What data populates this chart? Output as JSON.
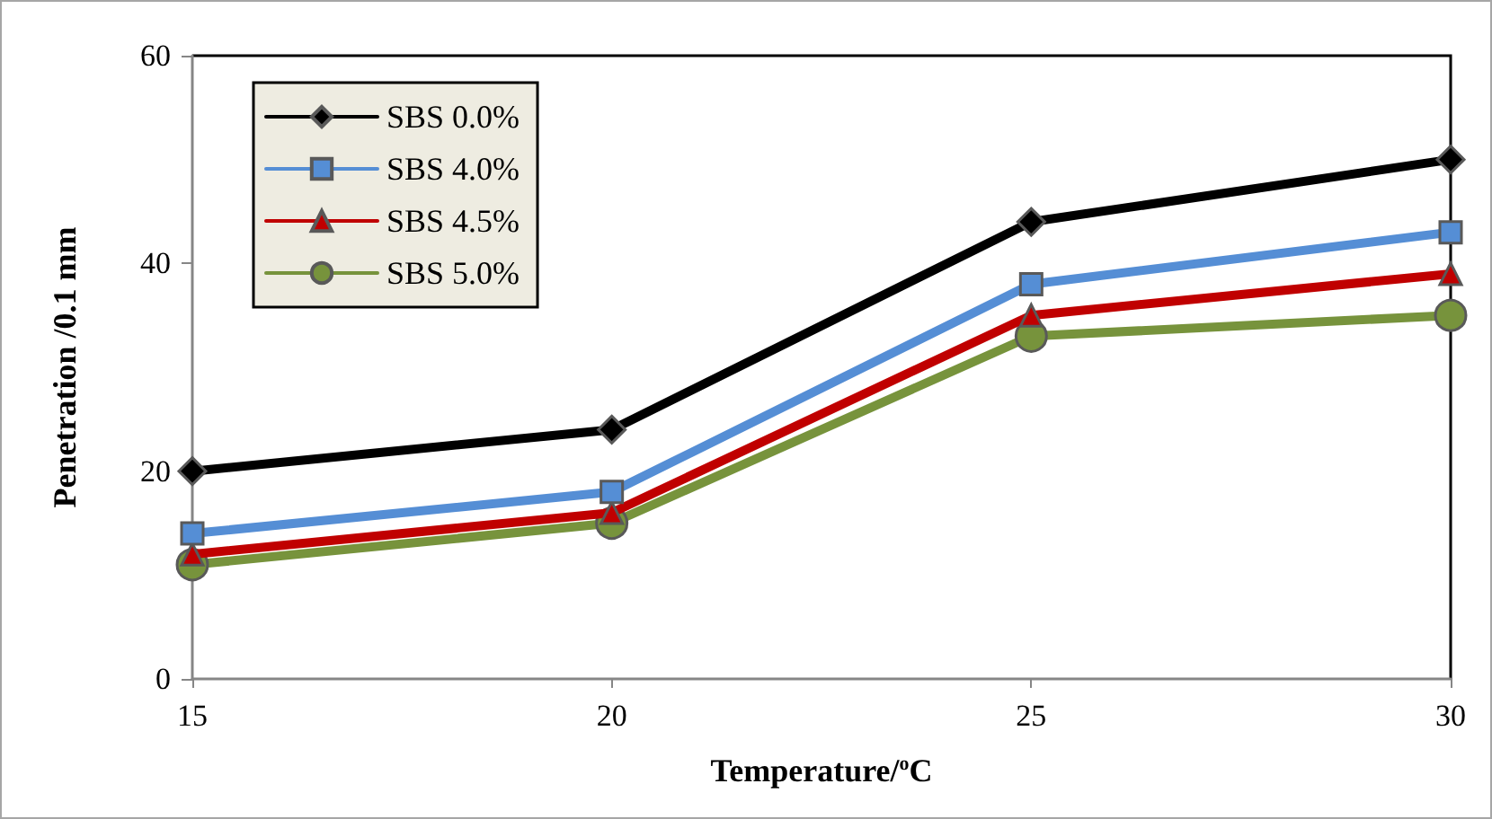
{
  "chart_data": {
    "type": "line",
    "xlabel": "Temperature/$^{o}$C",
    "ylabel": "Penetration /0.1 mm",
    "x": [
      15,
      20,
      25,
      30
    ],
    "xlim": [
      15,
      30
    ],
    "xticks": [
      15,
      20,
      25,
      30
    ],
    "ylim": [
      0,
      60
    ],
    "yticks": [
      0,
      20,
      40,
      60
    ],
    "grid": false,
    "legend": "top left",
    "series": [
      {
        "name": "SBS 0.0%",
        "color": "#000000",
        "marker": "diamond",
        "values": [
          20,
          24,
          44,
          50
        ]
      },
      {
        "name": "SBS 4.0%",
        "color": "#558ed5",
        "marker": "square",
        "values": [
          14,
          18,
          38,
          43
        ]
      },
      {
        "name": "SBS 4.5%",
        "color": "#c00000",
        "marker": "triangle",
        "values": [
          12,
          16,
          35,
          39
        ]
      },
      {
        "name": "SBS 5.0%",
        "color": "#77933c",
        "marker": "circle",
        "values": [
          11,
          15,
          33,
          35
        ]
      }
    ]
  }
}
